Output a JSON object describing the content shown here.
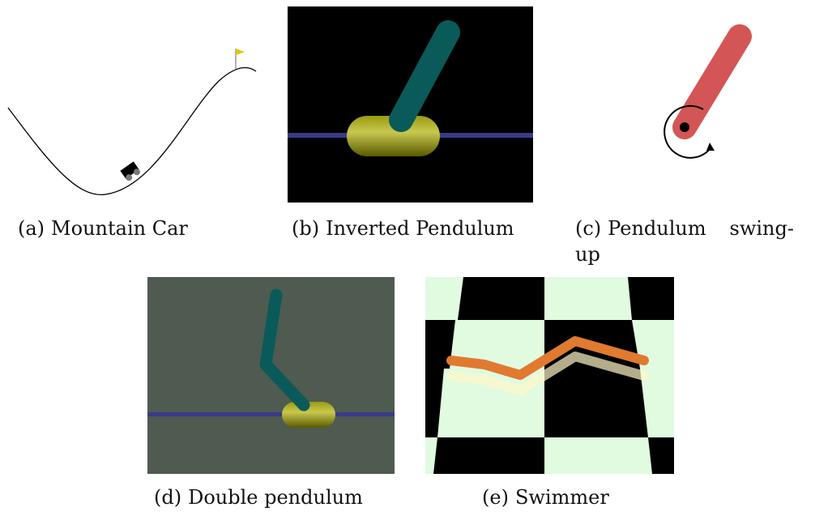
{
  "subfigures": [
    {
      "label": "(a)",
      "caption": "Mountain Car"
    },
    {
      "label": "(b)",
      "caption": "Inverted Pendulum"
    },
    {
      "label": "(c)",
      "caption": "Pendulum swing-up"
    },
    {
      "label": "(d)",
      "caption": "Double pendulum"
    },
    {
      "label": "(e)",
      "caption": "Swimmer"
    }
  ]
}
